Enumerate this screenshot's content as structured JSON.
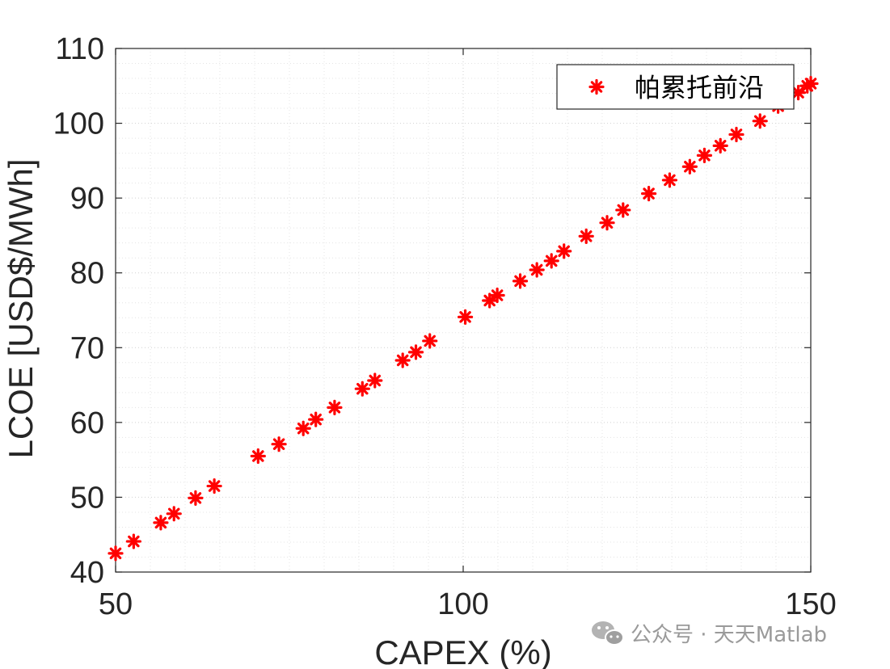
{
  "chart_data": {
    "type": "scatter",
    "title": "",
    "xlabel": "CAPEX (%)",
    "ylabel": "LCOE [USD$/MWh]",
    "xlim": [
      50,
      150
    ],
    "ylim": [
      40,
      110
    ],
    "xticks": [
      50,
      100,
      150
    ],
    "yticks": [
      40,
      50,
      60,
      70,
      80,
      90,
      100,
      110
    ],
    "grid": "minor dotted",
    "legend": "top-right",
    "series": [
      {
        "name": "帕累托前沿",
        "color": "#ff0000",
        "marker": "asterisk",
        "x": [
          50,
          52.6,
          56.5,
          58.4,
          61.5,
          64.2,
          70.5,
          73.5,
          77,
          78.8,
          81.5,
          85.5,
          87.3,
          91.3,
          93.2,
          95.2,
          100.3,
          103.8,
          104.9,
          108.2,
          110.6,
          112.7,
          114.5,
          117.7,
          120.7,
          123,
          126.7,
          129.7,
          132.6,
          134.7,
          137,
          139.3,
          142.7,
          145.3,
          148.2,
          149.5,
          150
        ],
        "y": [
          42.5,
          44.1,
          46.6,
          47.8,
          49.9,
          51.5,
          55.5,
          57.1,
          59.2,
          60.4,
          62,
          64.5,
          65.6,
          68.3,
          69.4,
          70.9,
          74.1,
          76.3,
          77,
          78.9,
          80.4,
          81.6,
          82.9,
          84.9,
          86.7,
          88.4,
          90.6,
          92.4,
          94.2,
          95.7,
          97,
          98.5,
          100.3,
          102.3,
          104.1,
          105,
          105.3
        ]
      }
    ]
  },
  "watermark": {
    "icon": "wechat-icon",
    "text": "公众号 · 天天Matlab"
  }
}
